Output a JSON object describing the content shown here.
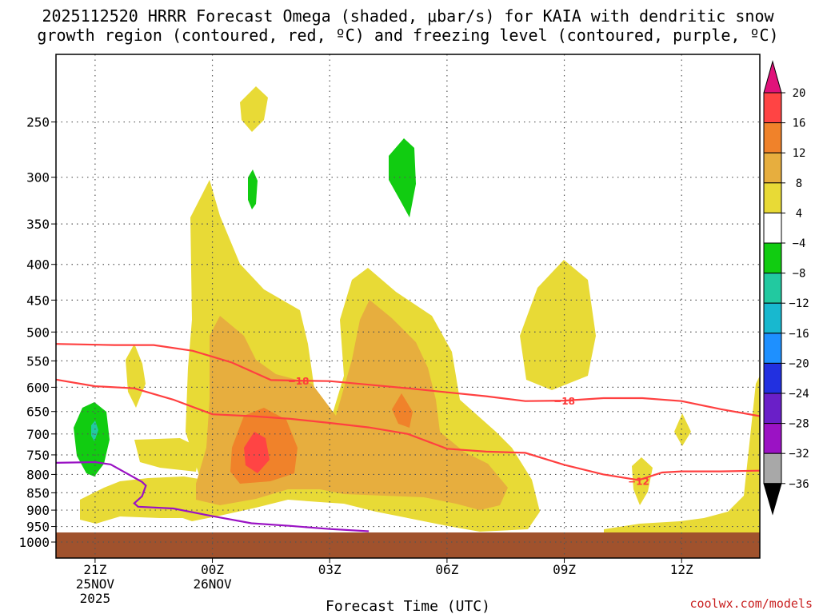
{
  "title_line1": "2025112520 HRRR Forecast Omega (shaded, μbar/s) for KAIA with dendritic snow",
  "title_line2": "growth region (contoured, red, ºC) and freezing level (contoured, purple, ºC)",
  "x_axis_label": "Forecast Time (UTC)",
  "credit": "coolwx.com/models",
  "chart_data": {
    "type": "time-height cross section",
    "variable": "Omega (μbar/s)",
    "x_ticks": [
      {
        "hour": 0,
        "lines": [
          "21Z",
          "25NOV",
          "2025"
        ]
      },
      {
        "hour": 3,
        "lines": [
          "00Z",
          "26NOV"
        ]
      },
      {
        "hour": 6,
        "lines": [
          "03Z"
        ]
      },
      {
        "hour": 9,
        "lines": [
          "06Z"
        ]
      },
      {
        "hour": 12,
        "lines": [
          "09Z"
        ]
      },
      {
        "hour": 15,
        "lines": [
          "12Z"
        ]
      }
    ],
    "xlim_hours": [
      -1,
      17
    ],
    "y_ticks": [
      250,
      300,
      350,
      400,
      450,
      500,
      550,
      600,
      650,
      700,
      750,
      800,
      850,
      900,
      950,
      1000
    ],
    "ylim_hpa": [
      200,
      1000
    ],
    "colorbar": {
      "levels": [
        "20",
        "16",
        "12",
        "8",
        "4",
        "−4",
        "−8",
        "−12",
        "−16",
        "−20",
        "−24",
        "−28",
        "−32",
        "−36"
      ],
      "colors": [
        "#e0127a",
        "#ff4444",
        "#f0822a",
        "#e7ae3e",
        "#e8da36",
        "#ffffff",
        "#11cc11",
        "#22c9a0",
        "#18b8cf",
        "#1e90ff",
        "#2230e0",
        "#6a1fc8",
        "#9b12c4",
        "#a8a8a8",
        "#000000"
      ]
    },
    "contour_labels": [
      {
        "text": "−18",
        "hour": 5.2,
        "hpa": 587
      },
      {
        "text": "−18",
        "hour": 12.0,
        "hpa": 627
      },
      {
        "text": "−12",
        "hour": 13.9,
        "hpa": 817
      }
    ],
    "series": [
      {
        "name": "dendritic -12C",
        "color": "#ff4040",
        "points": [
          [
            -1,
            585
          ],
          [
            0,
            598
          ],
          [
            1,
            602
          ],
          [
            2,
            625
          ],
          [
            3,
            656
          ],
          [
            4,
            660
          ],
          [
            5,
            666
          ],
          [
            6,
            675
          ],
          [
            7,
            685
          ],
          [
            8,
            700
          ],
          [
            9,
            735
          ],
          [
            10,
            742
          ],
          [
            11,
            745
          ],
          [
            12,
            775
          ],
          [
            13,
            800
          ],
          [
            13.9,
            815
          ],
          [
            14.5,
            795
          ],
          [
            15,
            792
          ],
          [
            16,
            792
          ],
          [
            17,
            790
          ]
        ]
      },
      {
        "name": "dendritic -18C",
        "color": "#ff4040",
        "points": [
          [
            -1,
            520
          ],
          [
            0.5,
            522
          ],
          [
            1.5,
            522
          ],
          [
            2.5,
            532
          ],
          [
            3.5,
            553
          ],
          [
            4.5,
            586
          ],
          [
            5.2,
            587
          ],
          [
            6,
            588
          ],
          [
            7,
            595
          ],
          [
            8,
            602
          ],
          [
            9,
            610
          ],
          [
            10,
            618
          ],
          [
            11,
            628
          ],
          [
            12,
            627
          ],
          [
            13,
            622
          ],
          [
            14,
            622
          ],
          [
            15,
            628
          ],
          [
            16,
            645
          ],
          [
            17,
            660
          ]
        ]
      },
      {
        "name": "freezing level 0C",
        "color": "#9a12c4",
        "points": [
          [
            -1,
            770
          ],
          [
            0,
            768
          ],
          [
            0.4,
            774
          ],
          [
            1.2,
            820
          ],
          [
            1.3,
            830
          ],
          [
            1.2,
            860
          ],
          [
            1.0,
            880
          ],
          [
            1.1,
            890
          ],
          [
            2,
            895
          ],
          [
            3,
            918
          ],
          [
            4,
            940
          ],
          [
            5,
            948
          ],
          [
            6,
            958
          ],
          [
            7,
            965
          ]
        ]
      }
    ]
  }
}
